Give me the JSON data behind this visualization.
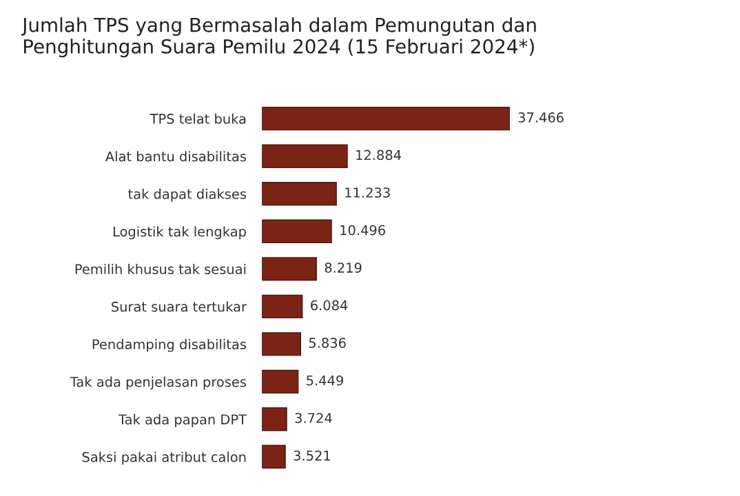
{
  "chart_data": {
    "type": "bar",
    "orientation": "horizontal",
    "title": "Jumlah TPS yang Bermasalah dalam Pemungutan dan\nPenghitungan Suara Pemilu 2024 (15 Februari 2024*)",
    "categories": [
      "TPS telat buka",
      "Alat bantu disabilitas",
      "tak dapat diakses",
      "Logistik tak lengkap",
      "Pemilih khusus tak sesuai",
      "Surat suara tertukar",
      "Pendamping disabilitas",
      "Tak ada penjelasan proses",
      "Tak ada papan DPT",
      "Saksi pakai atribut calon"
    ],
    "values": [
      37466,
      12884,
      11233,
      10496,
      8219,
      6084,
      5836,
      5449,
      3724,
      3521
    ],
    "value_labels": [
      "37.466",
      "12.884",
      "11.233",
      "10.496",
      "8.219",
      "6.084",
      "5.836",
      "5.449",
      "3.724",
      "3.521"
    ],
    "color": "#7b2416",
    "grid": false,
    "legend": false
  }
}
